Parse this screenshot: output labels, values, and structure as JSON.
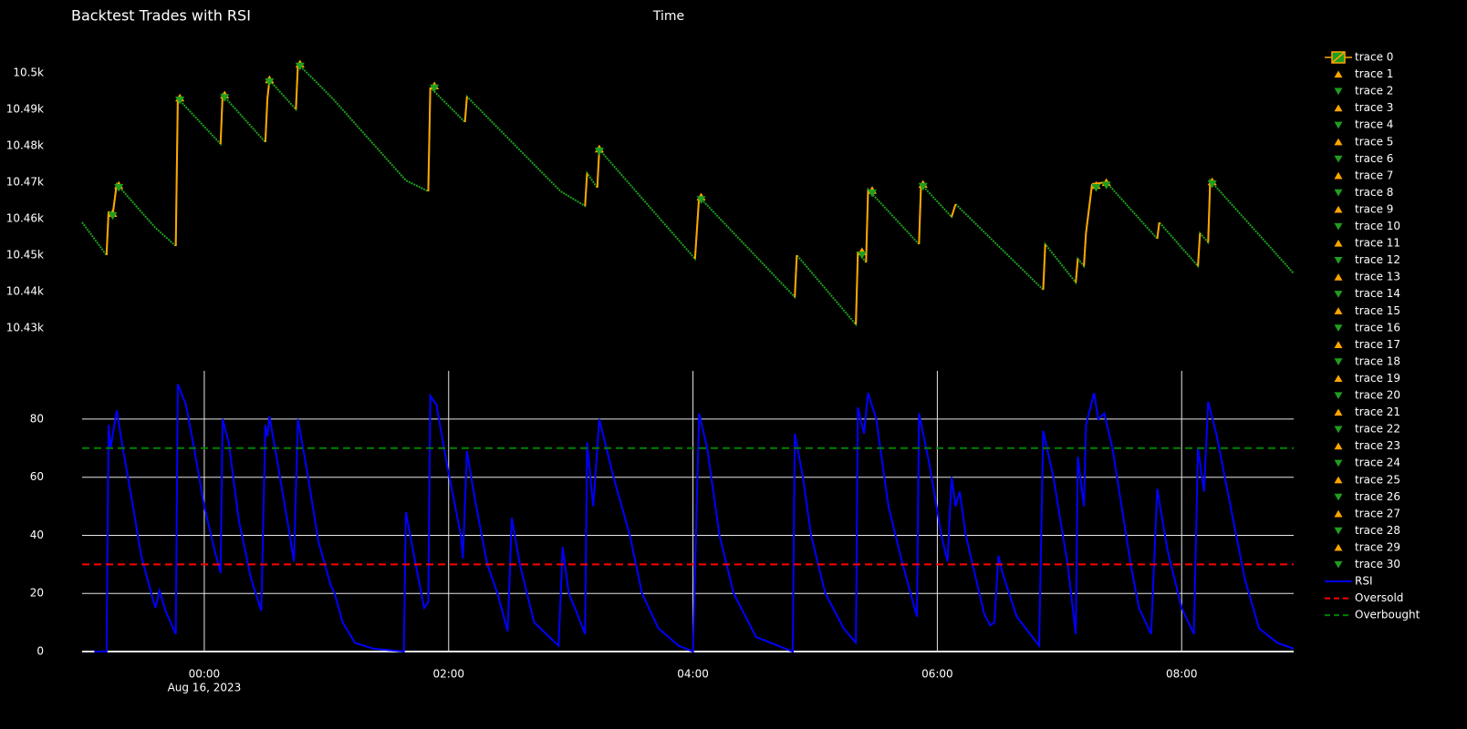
{
  "chart_data": [
    {
      "type": "candlestick",
      "title": "Backtest Trades with RSI",
      "xlabel": "Time",
      "xlim": [
        "2023-08-15T23:00",
        "2023-08-16T08:55"
      ],
      "ylim": [
        10427.5,
        10510
      ],
      "yticks": [
        {
          "value": 10430,
          "label": "10.43k"
        },
        {
          "value": 10440,
          "label": "10.44k"
        },
        {
          "value": 10450,
          "label": "10.45k"
        },
        {
          "value": 10460,
          "label": "10.46k"
        },
        {
          "value": 10470,
          "label": "10.47k"
        },
        {
          "value": 10480,
          "label": "10.48k"
        },
        {
          "value": 10490,
          "label": "10.49k"
        },
        {
          "value": 10500,
          "label": "10.5k"
        }
      ],
      "grid": false,
      "legend": "right",
      "series": [
        {
          "name": "trace 0",
          "color": "#1f9e1f",
          "increasing_color": "#ffa500",
          "x": [
            "2023-08-15T23:00",
            "2023-08-15T23:12",
            "2023-08-15T23:13",
            "2023-08-15T23:15",
            "2023-08-15T23:17",
            "2023-08-15T23:36",
            "2023-08-15T23:46",
            "2023-08-15T23:47",
            "2023-08-16T00:08",
            "2023-08-16T00:09",
            "2023-08-16T00:30",
            "2023-08-16T00:31",
            "2023-08-16T00:32",
            "2023-08-16T00:45",
            "2023-08-16T00:46",
            "2023-08-16T01:03",
            "2023-08-16T01:39",
            "2023-08-16T01:50",
            "2023-08-16T01:51",
            "2023-08-16T02:08",
            "2023-08-16T02:09",
            "2023-08-16T02:55",
            "2023-08-16T03:07",
            "2023-08-16T03:08",
            "2023-08-16T03:13",
            "2023-08-16T03:14",
            "2023-08-16T04:01",
            "2023-08-16T04:03",
            "2023-08-16T04:50",
            "2023-08-16T04:51",
            "2023-08-16T05:20",
            "2023-08-16T05:21",
            "2023-08-16T05:25",
            "2023-08-16T05:26",
            "2023-08-16T05:51",
            "2023-08-16T05:52",
            "2023-08-16T06:07",
            "2023-08-16T06:09",
            "2023-08-16T06:52",
            "2023-08-16T06:53",
            "2023-08-16T07:08",
            "2023-08-16T07:09",
            "2023-08-16T07:12",
            "2023-08-16T07:13",
            "2023-08-16T07:16",
            "2023-08-16T07:23",
            "2023-08-16T07:48",
            "2023-08-16T07:49",
            "2023-08-16T08:08",
            "2023-08-16T08:09",
            "2023-08-16T08:13",
            "2023-08-16T08:14",
            "2023-08-16T08:55"
          ],
          "values": [
            10459,
            10450,
            10462,
            10461,
            10469.5,
            10457.5,
            10452.5,
            10493,
            10480.5,
            10494,
            10481,
            10493,
            10498,
            10490,
            10502.5,
            10493,
            10470.5,
            10467.5,
            10496,
            10486.5,
            10493.5,
            10467.5,
            10463.5,
            10472.5,
            10468.5,
            10479,
            10449,
            10466,
            10438.5,
            10450,
            10431,
            10451,
            10448,
            10468,
            10453,
            10469.5,
            10460.5,
            10464,
            10440.5,
            10453,
            10442.5,
            10449,
            10447,
            10456,
            10469.5,
            10470,
            10454.5,
            10459,
            10447,
            10456,
            10453.5,
            10470.5,
            10445
          ]
        },
        {
          "name": "trace 1",
          "color": "#ffa500",
          "marker": "triangle-up",
          "x": [
            "2023-08-15T23:15"
          ],
          "values": [
            10461.5
          ]
        },
        {
          "name": "trace 2",
          "color": "#1f9e1f",
          "marker": "triangle-down",
          "x": [
            "2023-08-15T23:15"
          ],
          "values": [
            10460.8
          ]
        },
        {
          "name": "trace 3",
          "color": "#ffa500",
          "marker": "triangle-up",
          "x": [
            "2023-08-15T23:18"
          ],
          "values": [
            10469.2
          ]
        },
        {
          "name": "trace 4",
          "color": "#1f9e1f",
          "marker": "triangle-down",
          "x": [
            "2023-08-15T23:18"
          ],
          "values": [
            10468.5
          ]
        },
        {
          "name": "trace 5",
          "color": "#ffa500",
          "marker": "triangle-up",
          "x": [
            "2023-08-15T23:48"
          ],
          "values": [
            10493.2
          ]
        },
        {
          "name": "trace 6",
          "color": "#1f9e1f",
          "marker": "triangle-down",
          "x": [
            "2023-08-15T23:48"
          ],
          "values": [
            10492.5
          ]
        },
        {
          "name": "trace 7",
          "color": "#ffa500",
          "marker": "triangle-up",
          "x": [
            "2023-08-16T00:10"
          ],
          "values": [
            10494
          ]
        },
        {
          "name": "trace 8",
          "color": "#1f9e1f",
          "marker": "triangle-down",
          "x": [
            "2023-08-16T00:10"
          ],
          "values": [
            10493.2
          ]
        },
        {
          "name": "trace 9",
          "color": "#ffa500",
          "marker": "triangle-up",
          "x": [
            "2023-08-16T00:32"
          ],
          "values": [
            10498.2
          ]
        },
        {
          "name": "trace 10",
          "color": "#1f9e1f",
          "marker": "triangle-down",
          "x": [
            "2023-08-16T00:32"
          ],
          "values": [
            10497.5
          ]
        },
        {
          "name": "trace 11",
          "color": "#ffa500",
          "marker": "triangle-up",
          "x": [
            "2023-08-16T00:47"
          ],
          "values": [
            10502.5
          ]
        },
        {
          "name": "trace 12",
          "color": "#1f9e1f",
          "marker": "triangle-down",
          "x": [
            "2023-08-16T00:47"
          ],
          "values": [
            10501.8
          ]
        },
        {
          "name": "trace 13",
          "color": "#ffa500",
          "marker": "triangle-up",
          "x": [
            "2023-08-16T01:53"
          ],
          "values": [
            10496.5
          ]
        },
        {
          "name": "trace 14",
          "color": "#1f9e1f",
          "marker": "triangle-down",
          "x": [
            "2023-08-16T01:53"
          ],
          "values": [
            10495.8
          ]
        },
        {
          "name": "trace 15",
          "color": "#ffa500",
          "marker": "triangle-up",
          "x": [
            "2023-08-16T03:14"
          ],
          "values": [
            10479.2
          ]
        },
        {
          "name": "trace 16",
          "color": "#1f9e1f",
          "marker": "triangle-down",
          "x": [
            "2023-08-16T03:14"
          ],
          "values": [
            10478.5
          ]
        },
        {
          "name": "trace 17",
          "color": "#ffa500",
          "marker": "triangle-up",
          "x": [
            "2023-08-16T04:04"
          ],
          "values": [
            10466
          ]
        },
        {
          "name": "trace 18",
          "color": "#1f9e1f",
          "marker": "triangle-down",
          "x": [
            "2023-08-16T04:04"
          ],
          "values": [
            10465.2
          ]
        },
        {
          "name": "trace 19",
          "color": "#ffa500",
          "marker": "triangle-up",
          "x": [
            "2023-08-16T05:23"
          ],
          "values": [
            10451
          ]
        },
        {
          "name": "trace 20",
          "color": "#1f9e1f",
          "marker": "triangle-down",
          "x": [
            "2023-08-16T05:23"
          ],
          "values": [
            10450
          ]
        },
        {
          "name": "trace 21",
          "color": "#ffa500",
          "marker": "triangle-up",
          "x": [
            "2023-08-16T05:28"
          ],
          "values": [
            10467.8
          ]
        },
        {
          "name": "trace 22",
          "color": "#1f9e1f",
          "marker": "triangle-down",
          "x": [
            "2023-08-16T05:28"
          ],
          "values": [
            10467
          ]
        },
        {
          "name": "trace 23",
          "color": "#ffa500",
          "marker": "triangle-up",
          "x": [
            "2023-08-16T05:53"
          ],
          "values": [
            10469.5
          ]
        },
        {
          "name": "trace 24",
          "color": "#1f9e1f",
          "marker": "triangle-down",
          "x": [
            "2023-08-16T05:53"
          ],
          "values": [
            10468.8
          ]
        },
        {
          "name": "trace 25",
          "color": "#ffa500",
          "marker": "triangle-up",
          "x": [
            "2023-08-16T07:18"
          ],
          "values": [
            10469.2
          ]
        },
        {
          "name": "trace 26",
          "color": "#1f9e1f",
          "marker": "triangle-down",
          "x": [
            "2023-08-16T07:18"
          ],
          "values": [
            10468.5
          ]
        },
        {
          "name": "trace 27",
          "color": "#ffa500",
          "marker": "triangle-up",
          "x": [
            "2023-08-16T07:23"
          ],
          "values": [
            10470
          ]
        },
        {
          "name": "trace 28",
          "color": "#1f9e1f",
          "marker": "triangle-down",
          "x": [
            "2023-08-16T07:23"
          ],
          "values": [
            10469.2
          ]
        },
        {
          "name": "trace 29",
          "color": "#ffa500",
          "marker": "triangle-up",
          "x": [
            "2023-08-16T08:15"
          ],
          "values": [
            10470.2
          ]
        },
        {
          "name": "trace 30",
          "color": "#1f9e1f",
          "marker": "triangle-down",
          "x": [
            "2023-08-16T08:15"
          ],
          "values": [
            10469.5
          ]
        }
      ]
    },
    {
      "type": "line",
      "xlim": [
        "2023-08-15T23:00",
        "2023-08-16T08:55"
      ],
      "ylim": [
        0,
        96.6
      ],
      "xticks": [
        {
          "value": "2023-08-16T00:00",
          "label": "00:00"
        },
        {
          "value": "2023-08-16T02:00",
          "label": "02:00"
        },
        {
          "value": "2023-08-16T04:00",
          "label": "04:00"
        },
        {
          "value": "2023-08-16T06:00",
          "label": "06:00"
        },
        {
          "value": "2023-08-16T08:00",
          "label": "08:00"
        }
      ],
      "xtick_date_label": "Aug 16, 2023",
      "yticks": [
        0,
        20,
        40,
        60,
        80
      ],
      "grid": true,
      "series": [
        {
          "name": "RSI",
          "color": "#0000ff",
          "x": [
            "2023-08-15T23:06",
            "2023-08-15T23:12",
            "2023-08-15T23:13",
            "2023-08-15T23:14",
            "2023-08-15T23:17",
            "2023-08-15T23:20",
            "2023-08-15T23:25",
            "2023-08-15T23:29",
            "2023-08-15T23:34",
            "2023-08-15T23:36",
            "2023-08-15T23:38",
            "2023-08-15T23:41",
            "2023-08-15T23:46",
            "2023-08-15T23:47",
            "2023-08-15T23:51",
            "2023-08-15T23:55",
            "2023-08-16T00:00",
            "2023-08-16T00:05",
            "2023-08-16T00:08",
            "2023-08-16T00:09",
            "2023-08-16T00:12",
            "2023-08-16T00:17",
            "2023-08-16T00:23",
            "2023-08-16T00:28",
            "2023-08-16T00:30",
            "2023-08-16T00:31",
            "2023-08-16T00:32",
            "2023-08-16T00:36",
            "2023-08-16T00:42",
            "2023-08-16T00:44",
            "2023-08-16T00:46",
            "2023-08-16T00:51",
            "2023-08-16T00:56",
            "2023-08-16T01:02",
            "2023-08-16T01:04",
            "2023-08-16T01:08",
            "2023-08-16T01:14",
            "2023-08-16T01:23",
            "2023-08-16T01:38",
            "2023-08-16T01:39",
            "2023-08-16T01:43",
            "2023-08-16T01:48",
            "2023-08-16T01:50",
            "2023-08-16T01:51",
            "2023-08-16T01:54",
            "2023-08-16T01:59",
            "2023-08-16T02:06",
            "2023-08-16T02:07",
            "2023-08-16T02:09",
            "2023-08-16T02:13",
            "2023-08-16T02:19",
            "2023-08-16T02:24",
            "2023-08-16T02:29",
            "2023-08-16T02:31",
            "2023-08-16T02:35",
            "2023-08-16T02:42",
            "2023-08-16T02:54",
            "2023-08-16T02:56",
            "2023-08-16T02:59",
            "2023-08-16T03:02",
            "2023-08-16T03:07",
            "2023-08-16T03:08",
            "2023-08-16T03:11",
            "2023-08-16T03:14",
            "2023-08-16T03:21",
            "2023-08-16T03:29",
            "2023-08-16T03:35",
            "2023-08-16T03:43",
            "2023-08-16T03:53",
            "2023-08-16T04:00",
            "2023-08-16T04:03",
            "2023-08-16T04:07",
            "2023-08-16T04:13",
            "2023-08-16T04:20",
            "2023-08-16T04:31",
            "2023-08-16T04:49",
            "2023-08-16T04:50",
            "2023-08-16T04:54",
            "2023-08-16T04:58",
            "2023-08-16T05:05",
            "2023-08-16T05:14",
            "2023-08-16T05:20",
            "2023-08-16T05:21",
            "2023-08-16T05:24",
            "2023-08-16T05:26",
            "2023-08-16T05:30",
            "2023-08-16T05:36",
            "2023-08-16T05:43",
            "2023-08-16T05:50",
            "2023-08-16T05:51",
            "2023-08-16T05:56",
            "2023-08-16T06:02",
            "2023-08-16T06:05",
            "2023-08-16T06:07",
            "2023-08-16T06:09",
            "2023-08-16T06:11",
            "2023-08-16T06:14",
            "2023-08-16T06:19",
            "2023-08-16T06:23",
            "2023-08-16T06:26",
            "2023-08-16T06:28",
            "2023-08-16T06:30",
            "2023-08-16T06:32",
            "2023-08-16T06:39",
            "2023-08-16T06:50",
            "2023-08-16T06:52",
            "2023-08-16T06:57",
            "2023-08-16T07:04",
            "2023-08-16T07:08",
            "2023-08-16T07:09",
            "2023-08-16T07:12",
            "2023-08-16T07:13",
            "2023-08-16T07:17",
            "2023-08-16T07:19",
            "2023-08-16T07:22",
            "2023-08-16T07:26",
            "2023-08-16T07:35",
            "2023-08-16T07:39",
            "2023-08-16T07:45",
            "2023-08-16T07:48",
            "2023-08-16T07:53",
            "2023-08-16T08:00",
            "2023-08-16T08:06",
            "2023-08-16T08:08",
            "2023-08-16T08:11",
            "2023-08-16T08:13",
            "2023-08-16T08:17",
            "2023-08-16T08:24",
            "2023-08-16T08:31",
            "2023-08-16T08:38",
            "2023-08-16T08:47",
            "2023-08-16T08:55"
          ],
          "values": [
            0,
            0,
            78,
            70,
            83,
            70,
            50,
            33,
            20,
            15,
            21,
            14,
            6,
            92,
            85,
            70,
            50,
            35,
            27,
            80,
            72,
            45,
            25,
            14,
            78,
            74,
            81,
            65,
            40,
            31,
            80,
            60,
            38,
            23,
            20,
            10,
            3,
            1,
            0,
            48,
            33,
            15,
            17,
            88,
            85,
            65,
            40,
            32,
            69,
            52,
            30,
            20,
            7,
            46,
            30,
            10,
            2,
            36,
            20,
            15,
            6,
            72,
            50,
            80,
            60,
            40,
            20,
            8,
            2,
            0,
            82,
            70,
            40,
            20,
            5,
            0,
            75,
            60,
            40,
            20,
            8,
            3,
            84,
            75,
            89,
            80,
            50,
            30,
            12,
            82,
            65,
            40,
            31,
            60,
            50,
            55,
            40,
            25,
            13,
            9,
            10,
            33,
            27,
            12,
            2,
            76,
            60,
            30,
            6,
            67,
            50,
            78,
            89,
            80,
            82,
            70,
            30,
            15,
            6,
            56,
            35,
            15,
            6,
            70,
            55,
            86,
            75,
            50,
            25,
            8,
            3,
            1
          ]
        },
        {
          "name": "Oversold",
          "color": "#ff0000",
          "dash": true,
          "x": [
            "2023-08-15T23:00",
            "2023-08-16T08:55"
          ],
          "values": [
            30,
            30
          ]
        },
        {
          "name": "Overbought",
          "color": "#008000",
          "dash": true,
          "x": [
            "2023-08-15T23:00",
            "2023-08-16T08:55"
          ],
          "values": [
            70,
            70
          ]
        }
      ]
    }
  ]
}
